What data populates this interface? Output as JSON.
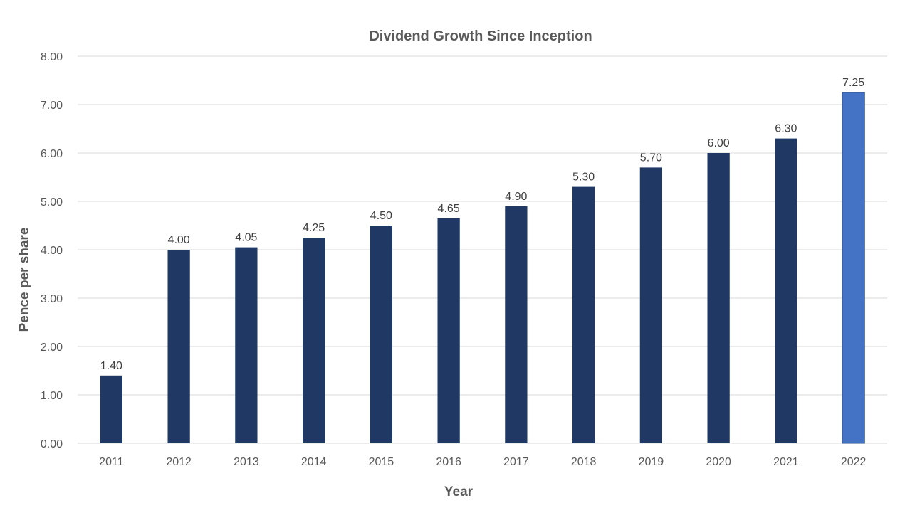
{
  "chart_data": {
    "type": "bar",
    "title": "Dividend Growth Since Inception",
    "xlabel": "Year",
    "ylabel": "Pence per share",
    "categories": [
      "2011",
      "2012",
      "2013",
      "2014",
      "2015",
      "2016",
      "2017",
      "2018",
      "2019",
      "2020",
      "2021",
      "2022"
    ],
    "values": [
      1.4,
      4.0,
      4.05,
      4.25,
      4.5,
      4.65,
      4.9,
      5.3,
      5.7,
      6.0,
      6.3,
      7.25
    ],
    "data_labels": [
      "1.40",
      "4.00",
      "4.05",
      "4.25",
      "4.50",
      "4.65",
      "4.90",
      "5.30",
      "5.70",
      "6.00",
      "6.30",
      "7.25"
    ],
    "ylim": [
      0,
      8
    ],
    "yticks": [
      "0.00",
      "1.00",
      "2.00",
      "3.00",
      "4.00",
      "5.00",
      "6.00",
      "7.00",
      "8.00"
    ],
    "ytick_values": [
      0,
      1,
      2,
      3,
      4,
      5,
      6,
      7,
      8
    ],
    "grid": true,
    "legend": "none",
    "colors": {
      "bar": "#1f3864",
      "highlight_bar": "#4472c4",
      "highlight_index": 11
    }
  }
}
